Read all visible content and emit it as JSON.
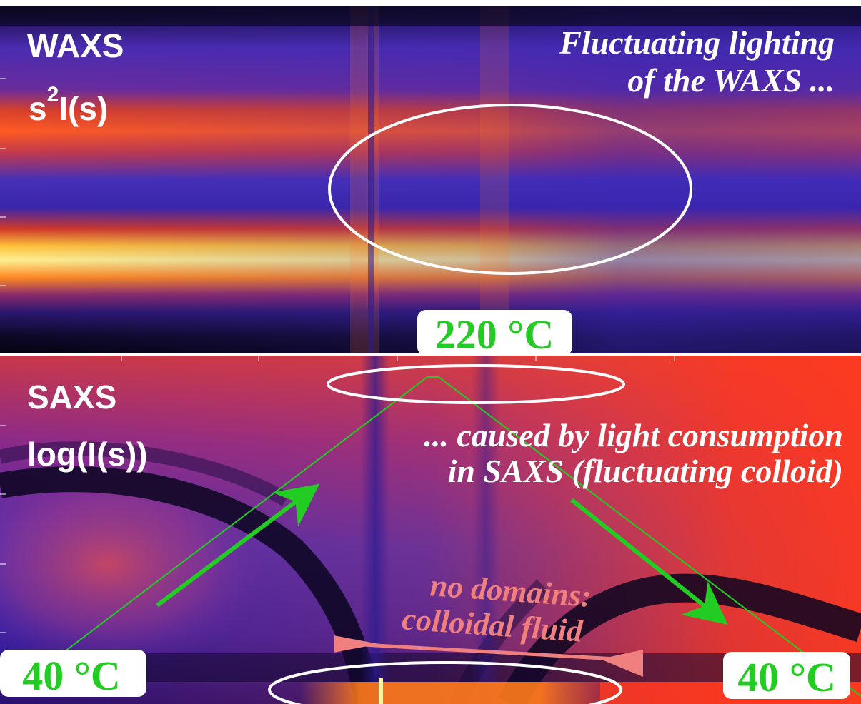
{
  "waxs_panel": {
    "title": "WAXS",
    "quantity_base": "s",
    "quantity_exp": "2",
    "quantity_rest": "I(s)",
    "annotation_line1": "Fluctuating lighting",
    "annotation_line2": "of the WAXS ..."
  },
  "saxs_panel": {
    "title": "SAXS",
    "quantity": "log(I(s))",
    "annotation_line1": "... caused by light consumption",
    "annotation_line2": "in SAXS (fluctuating colloid)",
    "domains_line1": "no domains:",
    "domains_line2": "colloidal fluid"
  },
  "temperature_labels": {
    "peak": "220 °C",
    "start": "40 °C",
    "end": "40 °C"
  },
  "colors": {
    "label_green": "#22cc22",
    "annotation_white": "#ffffff",
    "domains_pink": "#f08080",
    "ellipse_white": "#ffffff"
  }
}
